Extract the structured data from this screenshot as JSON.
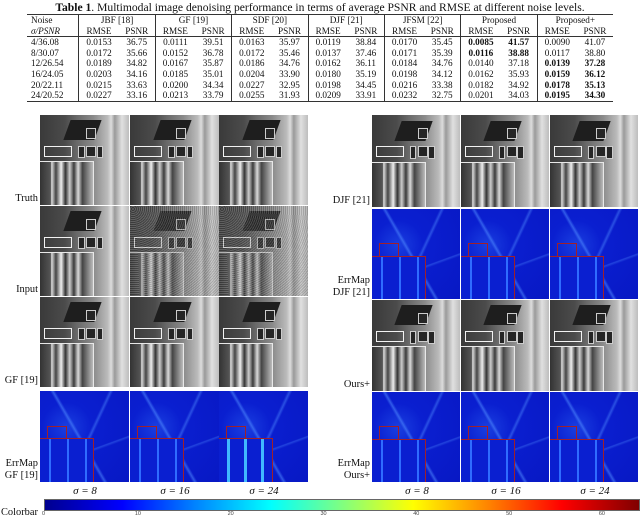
{
  "caption": {
    "label": "Table 1",
    "text": ". Multimodal image denoising performance in terms of average PSNR and RMSE at different noise levels."
  },
  "table": {
    "col_header_noise": "Noise",
    "col_header_sigma": "σ/PSNR",
    "methods": [
      "JBF [18]",
      "GF [19]",
      "SDF [20]",
      "DJF [21]",
      "JFSM [22]",
      "Proposed",
      "Proposed+"
    ],
    "metrics": [
      "RMSE",
      "PSNR"
    ],
    "rows": [
      {
        "noise": "4/36.08",
        "values": [
          [
            "0.0153",
            "36.75"
          ],
          [
            "0.0111",
            "39.51"
          ],
          [
            "0.0163",
            "35.97"
          ],
          [
            "0.0119",
            "38.84"
          ],
          [
            "0.0170",
            "35.45"
          ],
          [
            "0.0085",
            "41.57"
          ],
          [
            "0.0090",
            "41.07"
          ]
        ],
        "bold": [
          5
        ]
      },
      {
        "noise": "8/30.07",
        "values": [
          [
            "0.0172",
            "35.66"
          ],
          [
            "0.0152",
            "36.78"
          ],
          [
            "0.0172",
            "35.46"
          ],
          [
            "0.0137",
            "37.46"
          ],
          [
            "0.0171",
            "35.39"
          ],
          [
            "0.0116",
            "38.88"
          ],
          [
            "0.0117",
            "38.80"
          ]
        ],
        "bold": [
          5
        ]
      },
      {
        "noise": "12/26.54",
        "values": [
          [
            "0.0189",
            "34.82"
          ],
          [
            "0.0167",
            "35.87"
          ],
          [
            "0.0186",
            "34.76"
          ],
          [
            "0.0162",
            "36.11"
          ],
          [
            "0.0184",
            "34.76"
          ],
          [
            "0.0140",
            "37.18"
          ],
          [
            "0.0139",
            "37.28"
          ]
        ],
        "bold": [
          6
        ]
      },
      {
        "noise": "16/24.05",
        "values": [
          [
            "0.0203",
            "34.16"
          ],
          [
            "0.0185",
            "35.01"
          ],
          [
            "0.0204",
            "33.90"
          ],
          [
            "0.0180",
            "35.19"
          ],
          [
            "0.0198",
            "34.12"
          ],
          [
            "0.0162",
            "35.93"
          ],
          [
            "0.0159",
            "36.12"
          ]
        ],
        "bold": [
          6
        ]
      },
      {
        "noise": "20/22.11",
        "values": [
          [
            "0.0215",
            "33.63"
          ],
          [
            "0.0200",
            "34.34"
          ],
          [
            "0.0227",
            "32.95"
          ],
          [
            "0.0198",
            "34.45"
          ],
          [
            "0.0216",
            "33.38"
          ],
          [
            "0.0182",
            "34.92"
          ],
          [
            "0.0178",
            "35.13"
          ]
        ],
        "bold": [
          6
        ]
      },
      {
        "noise": "24/20.52",
        "values": [
          [
            "0.0227",
            "33.16"
          ],
          [
            "0.0213",
            "33.79"
          ],
          [
            "0.0255",
            "31.93"
          ],
          [
            "0.0209",
            "33.91"
          ],
          [
            "0.0232",
            "32.75"
          ],
          [
            "0.0201",
            "34.03"
          ],
          [
            "0.0195",
            "34.30"
          ]
        ],
        "bold": [
          6
        ]
      }
    ]
  },
  "figure": {
    "left_grid": {
      "row_labels": [
        [
          "Truth"
        ],
        [
          "Input"
        ],
        [
          "GF [19]"
        ],
        [
          "ErrMap",
          "GF [19]"
        ]
      ]
    },
    "right_grid": {
      "row_labels": [
        [
          "DJF [21]"
        ],
        [
          "ErrMap",
          "DJF [21]"
        ],
        [
          "Ours+"
        ],
        [
          "ErrMap",
          "Ours+"
        ]
      ]
    },
    "sigma_labels": [
      "σ = 8",
      "σ = 16",
      "σ = 24"
    ],
    "colorbar": {
      "label": "Colorbar",
      "ticks": [
        "0",
        "10",
        "20",
        "30",
        "40",
        "50",
        "60"
      ],
      "range": [
        0,
        64
      ],
      "colormap": "jet"
    }
  }
}
